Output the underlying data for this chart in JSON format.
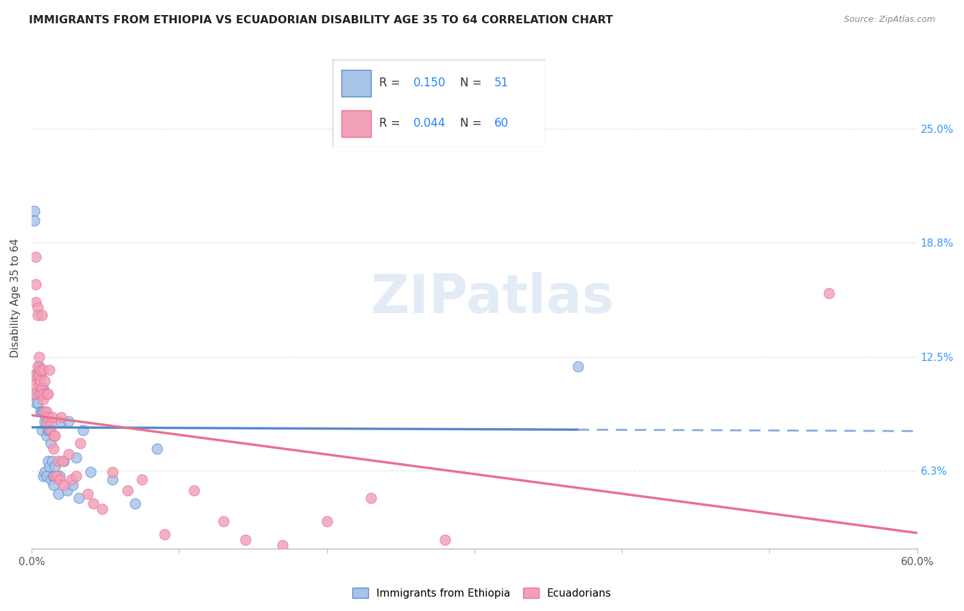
{
  "title": "IMMIGRANTS FROM ETHIOPIA VS ECUADORIAN DISABILITY AGE 35 TO 64 CORRELATION CHART",
  "source": "Source: ZipAtlas.com",
  "ylabel": "Disability Age 35 to 64",
  "ytick_labels": [
    "25.0%",
    "18.8%",
    "12.5%",
    "6.3%"
  ],
  "ytick_values": [
    0.25,
    0.188,
    0.125,
    0.063
  ],
  "xlim": [
    0.0,
    0.6
  ],
  "ylim": [
    0.02,
    0.295
  ],
  "color_blue": "#a8c4e8",
  "color_pink": "#f2a0b8",
  "line_blue": "#5588cc",
  "line_pink": "#e87090",
  "line_dashed_blue": "#88aadd",
  "watermark": "ZIPatlas",
  "legend_r1_val": "0.150",
  "legend_n1": "51",
  "legend_r2_val": "0.044",
  "legend_n2": "60",
  "ethiopia_x": [
    0.001,
    0.002,
    0.002,
    0.003,
    0.003,
    0.004,
    0.004,
    0.004,
    0.005,
    0.005,
    0.005,
    0.006,
    0.006,
    0.006,
    0.007,
    0.007,
    0.007,
    0.008,
    0.008,
    0.008,
    0.009,
    0.009,
    0.01,
    0.01,
    0.01,
    0.011,
    0.011,
    0.012,
    0.012,
    0.013,
    0.013,
    0.014,
    0.015,
    0.015,
    0.016,
    0.017,
    0.018,
    0.019,
    0.02,
    0.022,
    0.024,
    0.025,
    0.028,
    0.03,
    0.032,
    0.035,
    0.04,
    0.055,
    0.07,
    0.085,
    0.37
  ],
  "ethiopia_y": [
    0.115,
    0.205,
    0.2,
    0.105,
    0.1,
    0.115,
    0.105,
    0.1,
    0.12,
    0.115,
    0.105,
    0.115,
    0.105,
    0.095,
    0.108,
    0.095,
    0.085,
    0.108,
    0.095,
    0.06,
    0.09,
    0.062,
    0.09,
    0.082,
    0.06,
    0.085,
    0.068,
    0.085,
    0.065,
    0.078,
    0.058,
    0.068,
    0.06,
    0.055,
    0.065,
    0.06,
    0.05,
    0.06,
    0.09,
    0.068,
    0.052,
    0.09,
    0.055,
    0.07,
    0.048,
    0.085,
    0.062,
    0.058,
    0.045,
    0.075,
    0.12
  ],
  "ecuador_x": [
    0.001,
    0.002,
    0.002,
    0.003,
    0.003,
    0.003,
    0.004,
    0.004,
    0.004,
    0.005,
    0.005,
    0.005,
    0.006,
    0.006,
    0.006,
    0.007,
    0.007,
    0.008,
    0.008,
    0.008,
    0.009,
    0.009,
    0.01,
    0.01,
    0.01,
    0.011,
    0.011,
    0.012,
    0.013,
    0.013,
    0.014,
    0.015,
    0.015,
    0.016,
    0.016,
    0.017,
    0.018,
    0.019,
    0.02,
    0.021,
    0.022,
    0.025,
    0.027,
    0.03,
    0.033,
    0.038,
    0.042,
    0.048,
    0.055,
    0.065,
    0.075,
    0.09,
    0.11,
    0.13,
    0.145,
    0.17,
    0.2,
    0.23,
    0.28,
    0.54
  ],
  "ecuador_y": [
    0.115,
    0.11,
    0.105,
    0.18,
    0.165,
    0.155,
    0.152,
    0.148,
    0.12,
    0.115,
    0.11,
    0.125,
    0.118,
    0.112,
    0.105,
    0.148,
    0.108,
    0.118,
    0.105,
    0.102,
    0.112,
    0.095,
    0.105,
    0.095,
    0.088,
    0.105,
    0.092,
    0.118,
    0.088,
    0.085,
    0.092,
    0.082,
    0.075,
    0.082,
    0.06,
    0.06,
    0.068,
    0.058,
    0.092,
    0.068,
    0.055,
    0.072,
    0.058,
    0.06,
    0.078,
    0.05,
    0.045,
    0.042,
    0.062,
    0.052,
    0.058,
    0.028,
    0.052,
    0.035,
    0.025,
    0.022,
    0.035,
    0.048,
    0.025,
    0.16
  ]
}
